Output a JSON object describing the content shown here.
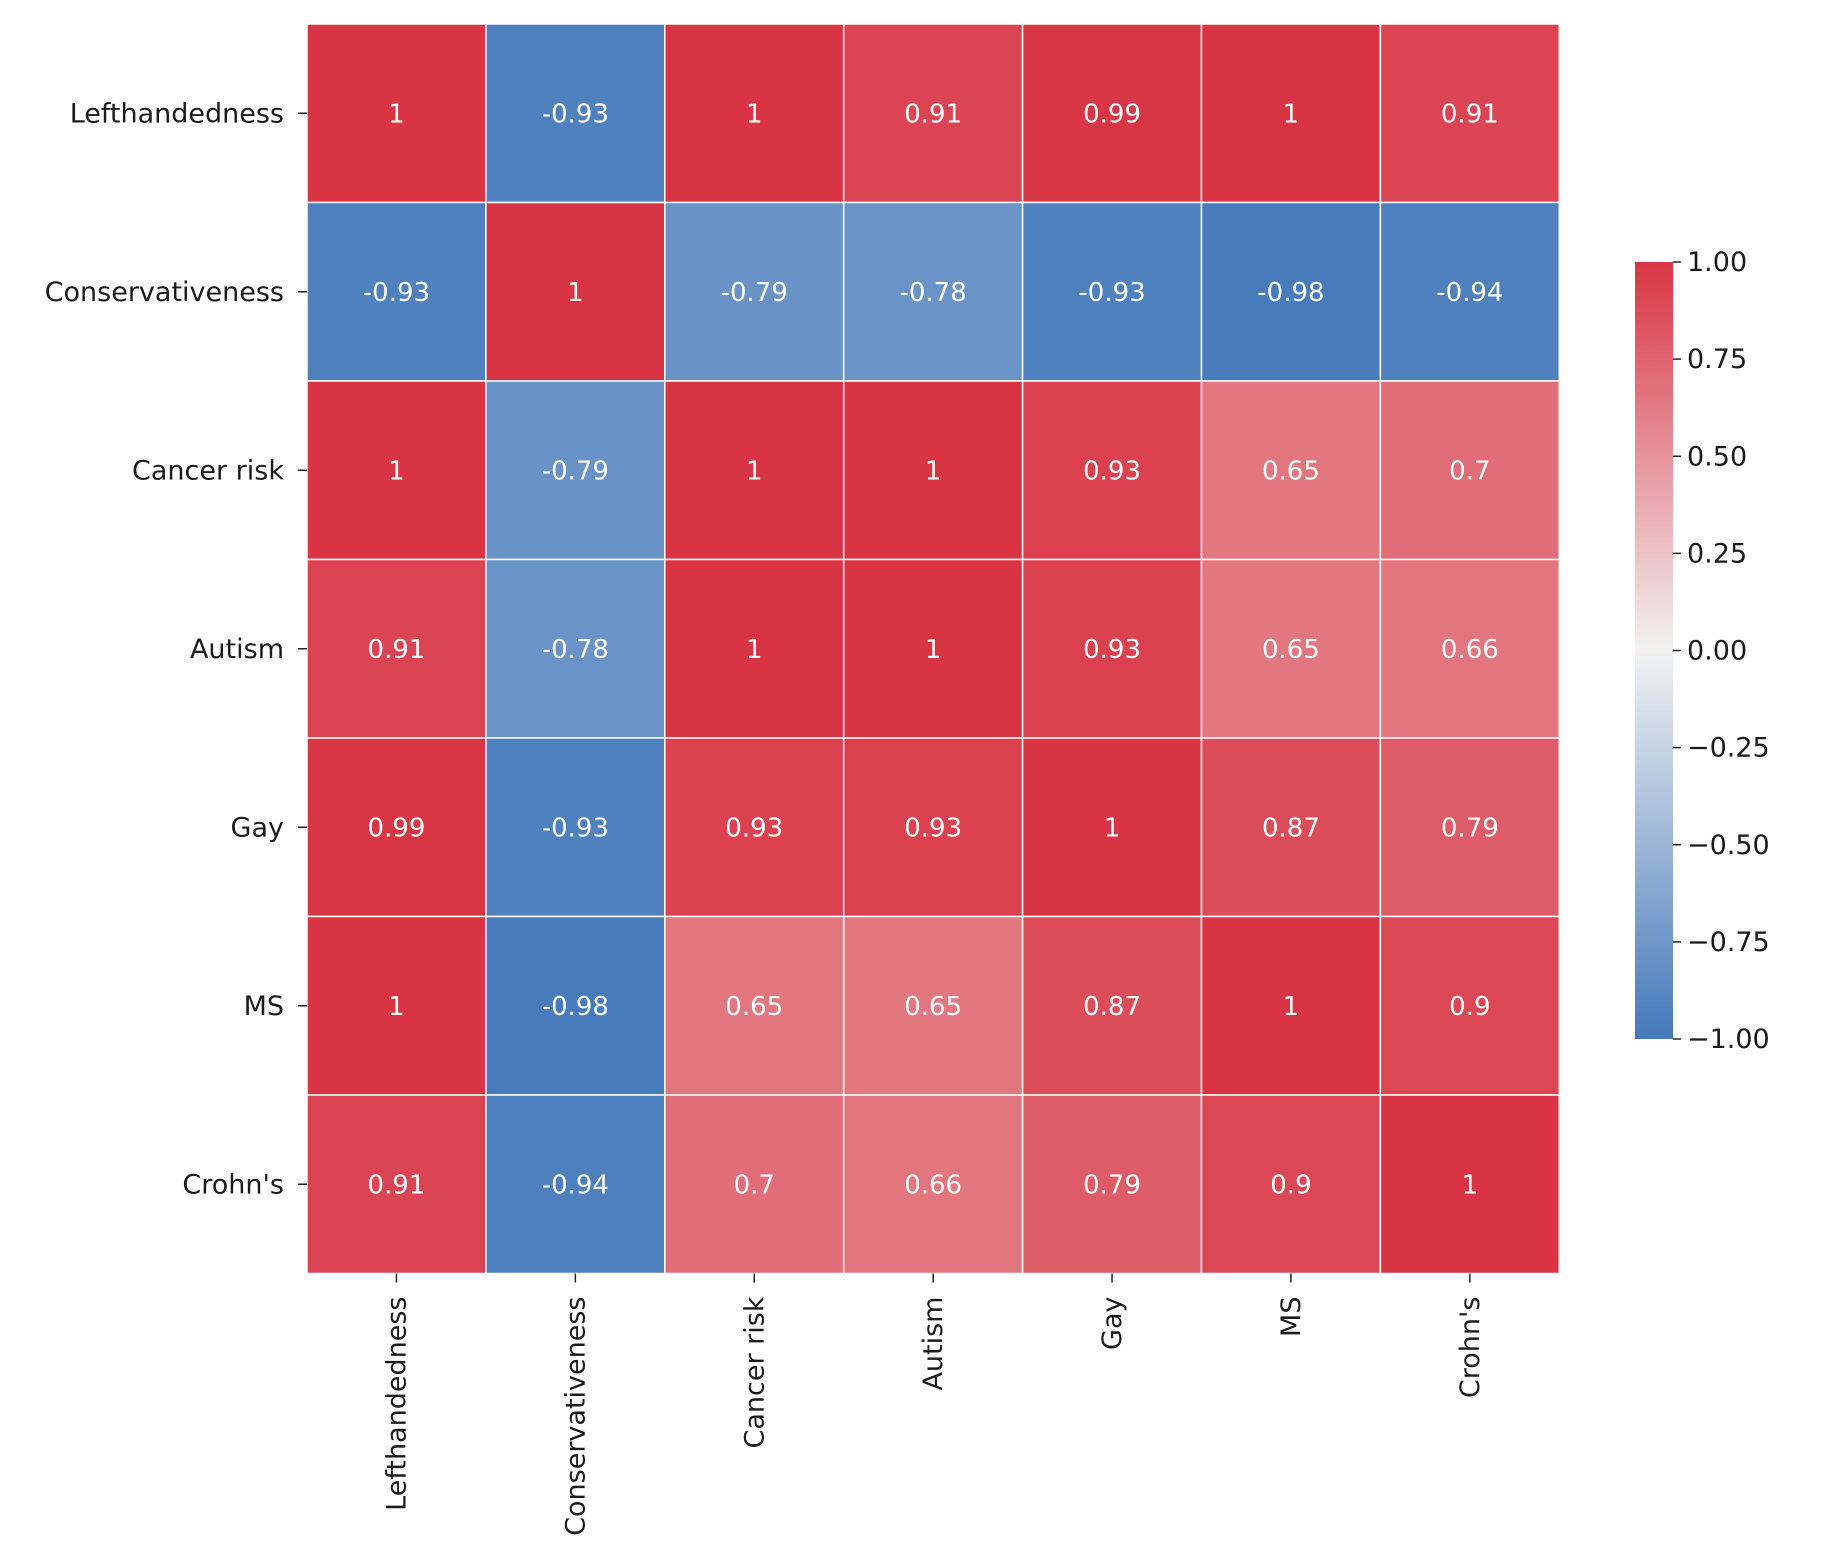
{
  "chart_data": {
    "type": "heatmap",
    "rows": [
      "Lefthandedness",
      "Conservativeness",
      "Cancer risk",
      "Autism",
      "Gay",
      "MS",
      "Crohn's"
    ],
    "columns": [
      "Lefthandedness",
      "Conservativeness",
      "Cancer risk",
      "Autism",
      "Gay",
      "MS",
      "Crohn's"
    ],
    "values": [
      [
        1,
        -0.93,
        1,
        0.91,
        0.99,
        1,
        0.91
      ],
      [
        -0.93,
        1,
        -0.79,
        -0.78,
        -0.93,
        -0.98,
        -0.94
      ],
      [
        1,
        -0.79,
        1,
        1,
        0.93,
        0.65,
        0.7
      ],
      [
        0.91,
        -0.78,
        1,
        1,
        0.93,
        0.65,
        0.66
      ],
      [
        0.99,
        -0.93,
        0.93,
        0.93,
        1,
        0.87,
        0.79
      ],
      [
        1,
        -0.98,
        0.65,
        0.65,
        0.87,
        1,
        0.9
      ],
      [
        0.91,
        -0.94,
        0.7,
        0.66,
        0.79,
        0.9,
        1
      ]
    ],
    "annotations": [
      [
        "1",
        "-0.93",
        "1",
        "0.91",
        "0.99",
        "1",
        "0.91"
      ],
      [
        "-0.93",
        "1",
        "-0.79",
        "-0.78",
        "-0.93",
        "-0.98",
        "-0.94"
      ],
      [
        "1",
        "-0.79",
        "1",
        "1",
        "0.93",
        "0.65",
        "0.7"
      ],
      [
        "0.91",
        "-0.78",
        "1",
        "1",
        "0.93",
        "0.65",
        "0.66"
      ],
      [
        "0.99",
        "-0.93",
        "0.93",
        "0.93",
        "1",
        "0.87",
        "0.79"
      ],
      [
        "1",
        "-0.98",
        "0.65",
        "0.65",
        "0.87",
        "1",
        "0.9"
      ],
      [
        "0.91",
        "-0.94",
        "0.7",
        "0.66",
        "0.79",
        "0.9",
        "1"
      ]
    ],
    "colorbar": {
      "vmin": -1,
      "vmax": 1,
      "ticks": [
        1.0,
        0.75,
        0.5,
        0.25,
        0.0,
        -0.25,
        -0.5,
        -0.75,
        -1.0
      ],
      "tick_labels": [
        "1.00",
        "0.75",
        "0.50",
        "0.25",
        "0.00",
        "−0.25",
        "−0.50",
        "−0.75",
        "−1.00"
      ],
      "low_color": "#4479bb",
      "mid_color": "#f2f2f2",
      "high_color": "#d93443"
    },
    "title": "",
    "xlabel": "",
    "ylabel": ""
  }
}
